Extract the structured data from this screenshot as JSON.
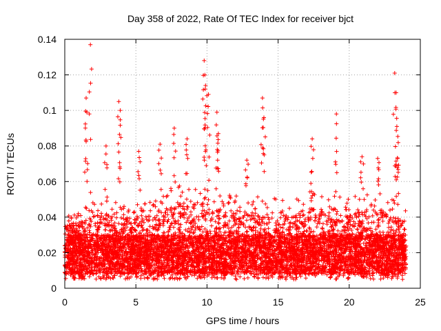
{
  "chart_data": {
    "type": "scatter",
    "title": "Day 358 of 2022, Rate Of TEC Index for receiver bjct",
    "xlabel": "GPS time / hours",
    "ylabel": "ROTI / TECUs",
    "xlim": [
      0,
      25
    ],
    "ylim": [
      0,
      0.14
    ],
    "x_ticks": [
      0,
      5,
      10,
      15,
      20,
      25
    ],
    "x_tick_labels": [
      "0",
      "5",
      "10",
      "15",
      "20",
      "25"
    ],
    "y_ticks": [
      0,
      0.02,
      0.04,
      0.06,
      0.08,
      0.1,
      0.12,
      0.14
    ],
    "y_tick_labels": [
      "0",
      "0.02",
      "0.04",
      "0.06",
      "0.08",
      "0.1",
      "0.12",
      "0.14"
    ],
    "grid": true,
    "marker": "plus",
    "color": "#ff0000",
    "series": [
      {
        "name": "ROTI",
        "baseline_profile": {
          "x": [
            0,
            1,
            2,
            3,
            4,
            5,
            6,
            7,
            8,
            9,
            10,
            11,
            12,
            13,
            14,
            15,
            16,
            17,
            18,
            19,
            20,
            21,
            22,
            23,
            24
          ],
          "typical_max": [
            0.045,
            0.045,
            0.05,
            0.05,
            0.05,
            0.048,
            0.05,
            0.055,
            0.058,
            0.06,
            0.058,
            0.055,
            0.055,
            0.05,
            0.055,
            0.05,
            0.05,
            0.055,
            0.055,
            0.055,
            0.05,
            0.055,
            0.055,
            0.05,
            0.045
          ]
        },
        "peaks": [
          {
            "x": 1.5,
            "y": 0.107
          },
          {
            "x": 1.55,
            "y": 0.099
          },
          {
            "x": 1.8,
            "y": 0.137
          },
          {
            "x": 2.9,
            "y": 0.08
          },
          {
            "x": 3.8,
            "y": 0.105
          },
          {
            "x": 3.9,
            "y": 0.1
          },
          {
            "x": 5.2,
            "y": 0.077
          },
          {
            "x": 6.7,
            "y": 0.081
          },
          {
            "x": 7.7,
            "y": 0.09
          },
          {
            "x": 8.6,
            "y": 0.084
          },
          {
            "x": 9.8,
            "y": 0.128
          },
          {
            "x": 9.85,
            "y": 0.12
          },
          {
            "x": 9.9,
            "y": 0.114
          },
          {
            "x": 10.1,
            "y": 0.109
          },
          {
            "x": 10.7,
            "y": 0.099
          },
          {
            "x": 10.8,
            "y": 0.087
          },
          {
            "x": 12.8,
            "y": 0.072
          },
          {
            "x": 13.9,
            "y": 0.107
          },
          {
            "x": 14.0,
            "y": 0.096
          },
          {
            "x": 17.4,
            "y": 0.084
          },
          {
            "x": 19.1,
            "y": 0.098
          },
          {
            "x": 20.9,
            "y": 0.074
          },
          {
            "x": 22.0,
            "y": 0.073
          },
          {
            "x": 23.2,
            "y": 0.121
          },
          {
            "x": 23.3,
            "y": 0.11
          },
          {
            "x": 23.35,
            "y": 0.091
          },
          {
            "x": 23.4,
            "y": 0.073
          }
        ]
      }
    ]
  }
}
